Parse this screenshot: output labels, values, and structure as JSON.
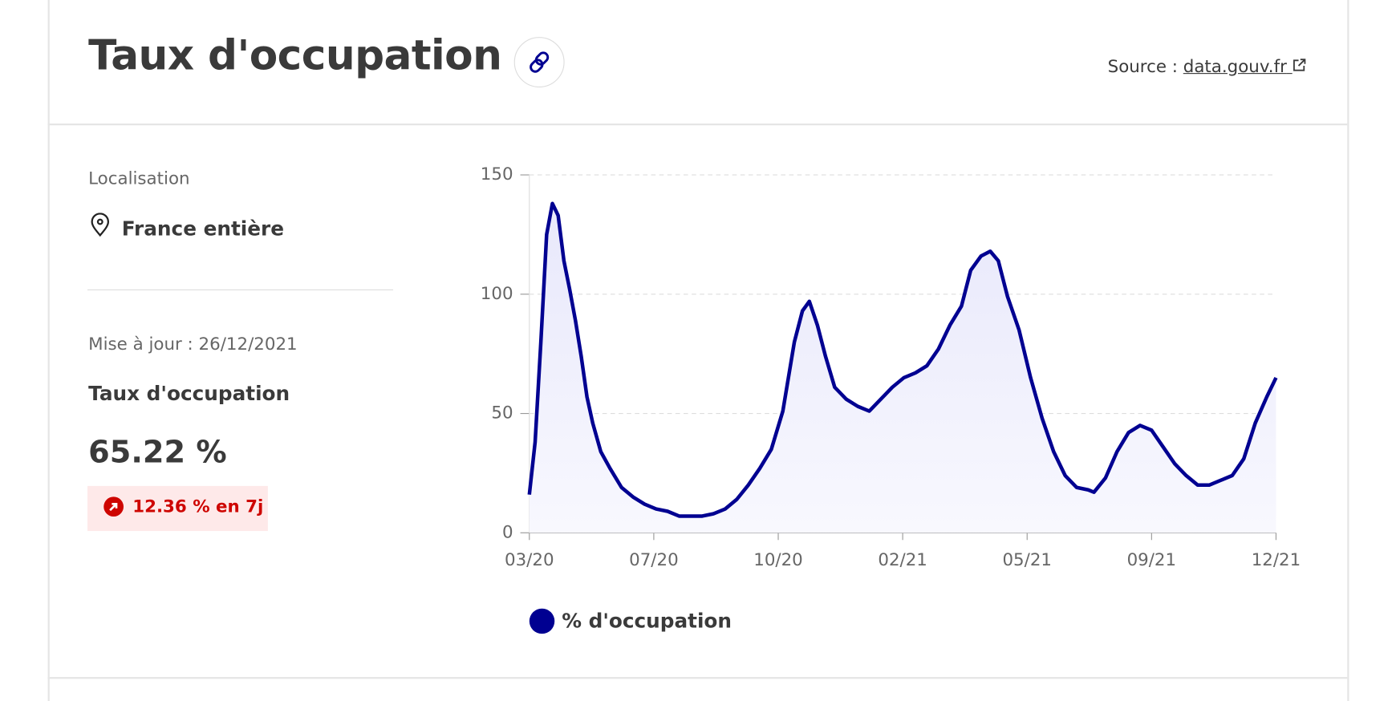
{
  "header": {
    "title": "Taux d'occupation",
    "source_label": "Source :",
    "source_link": "data.gouv.fr"
  },
  "sidebar": {
    "location_label": "Localisation",
    "location": "France entière",
    "updated": "Mise à jour : 26/12/2021",
    "metric_label": "Taux d'occupation",
    "metric_value": "65.22 %",
    "change": "12.36 % en 7j"
  },
  "chart_data": {
    "type": "line",
    "grid": true,
    "area": true,
    "x": [
      0,
      5,
      10,
      15,
      20,
      25,
      30,
      35,
      40,
      45,
      50,
      55,
      62,
      70,
      80,
      90,
      100,
      110,
      120,
      130,
      140,
      150,
      160,
      170,
      180,
      190,
      200,
      210,
      220,
      230,
      237,
      243,
      250,
      257,
      265,
      275,
      285,
      295,
      305,
      315,
      325,
      335,
      345,
      355,
      365,
      375,
      383,
      392,
      400,
      407,
      415,
      425,
      435,
      445,
      455,
      465,
      475,
      485,
      490,
      500,
      510,
      520,
      530,
      540,
      550,
      560,
      570,
      580,
      590,
      600,
      610,
      620,
      630,
      640,
      648
    ],
    "series": [
      {
        "name": "% d'occupation",
        "color": "#000091",
        "values": [
          16,
          38,
          80,
          125,
          138,
          133,
          114,
          102,
          89,
          74,
          57,
          46,
          34,
          27,
          19,
          15,
          12,
          10,
          9,
          7,
          7,
          7,
          8,
          10,
          14,
          20,
          27,
          35,
          51,
          80,
          93,
          97,
          87,
          74,
          61,
          56,
          53,
          51,
          56,
          61,
          65,
          67,
          70,
          77,
          87,
          95,
          110,
          116,
          118,
          114,
          99,
          85,
          65,
          48,
          34,
          24,
          19,
          18,
          17,
          23,
          34,
          42,
          45,
          43,
          36,
          29,
          24,
          20,
          20,
          22,
          24,
          31,
          46,
          57,
          65
        ]
      }
    ],
    "xlim": [
      0,
      648
    ],
    "xticks": [
      {
        "value": 0,
        "label": "03/20"
      },
      {
        "value": 108,
        "label": "07/20"
      },
      {
        "value": 216,
        "label": "10/20"
      },
      {
        "value": 324,
        "label": "02/21"
      },
      {
        "value": 432,
        "label": "05/21"
      },
      {
        "value": 540,
        "label": "09/21"
      },
      {
        "value": 648,
        "label": "12/21"
      }
    ],
    "ylim": [
      0,
      150
    ],
    "yticks": [
      0,
      50,
      100,
      150
    ]
  }
}
